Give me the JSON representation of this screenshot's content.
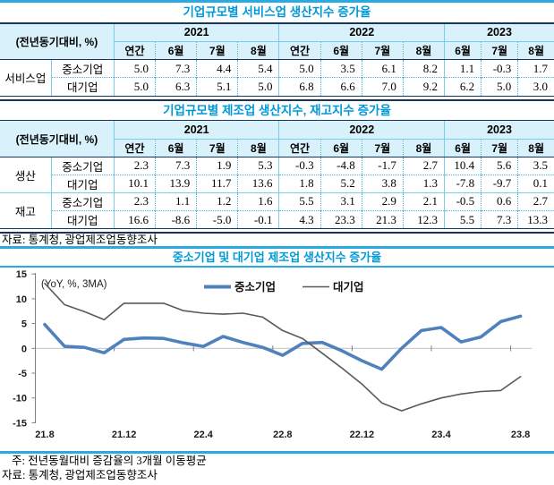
{
  "colors": {
    "title_blue": "#0099D8",
    "header_bg": "#D9F1FB",
    "rule_navy": "#16365C",
    "rule_cyan": "#29ABE2",
    "group_line": "#7CCDEA",
    "dot_line": "#49B8DF",
    "zero_grid": "#C8C8C8",
    "axis_gray": "#808080",
    "sme_blue": "#4F81BD",
    "large_gray": "#595959"
  },
  "table1": {
    "title": "기업규모별 서비스업 생산지수 증가율",
    "unit_label": "(전년동기대비, %)",
    "year_groups": [
      {
        "label": "2021",
        "months": [
          "연간",
          "6월",
          "7월",
          "8월"
        ]
      },
      {
        "label": "2022",
        "months": [
          "연간",
          "6월",
          "7월",
          "8월"
        ]
      },
      {
        "label": "2023",
        "months": [
          "6월",
          "7월",
          "8월"
        ]
      }
    ],
    "rows": [
      {
        "group": "서비스업",
        "rowspan": 2,
        "label": "중소기업",
        "values": [
          "5.0",
          "7.3",
          "4.4",
          "5.4",
          "5.0",
          "3.5",
          "6.1",
          "8.2",
          "1.1",
          "-0.3",
          "1.7"
        ]
      },
      {
        "group": "",
        "label": "대기업",
        "values": [
          "5.0",
          "6.3",
          "5.1",
          "5.0",
          "6.8",
          "6.6",
          "7.0",
          "9.2",
          "6.2",
          "5.0",
          "3.0"
        ]
      }
    ]
  },
  "table2": {
    "title": "기업규모별 제조업 생산지수, 재고지수 증가율",
    "unit_label": "(전년동기대비, %)",
    "year_groups": [
      {
        "label": "2021",
        "months": [
          "연간",
          "6월",
          "7월",
          "8월"
        ]
      },
      {
        "label": "2022",
        "months": [
          "연간",
          "6월",
          "7월",
          "8월"
        ]
      },
      {
        "label": "2023",
        "months": [
          "6월",
          "7월",
          "8월"
        ]
      }
    ],
    "rows": [
      {
        "group": "생산",
        "rowspan": 2,
        "label": "중소기업",
        "values": [
          "2.3",
          "7.3",
          "1.9",
          "5.3",
          "-0.3",
          "-4.8",
          "-1.7",
          "2.7",
          "10.4",
          "5.6",
          "3.5"
        ]
      },
      {
        "group": "",
        "label": "대기업",
        "values": [
          "10.1",
          "13.9",
          "11.7",
          "13.6",
          "1.8",
          "5.2",
          "3.8",
          "1.3",
          "-7.8",
          "-9.7",
          "0.1"
        ]
      },
      {
        "group": "재고",
        "rowspan": 2,
        "label": "중소기업",
        "values": [
          "2.3",
          "1.1",
          "1.2",
          "1.6",
          "5.5",
          "3.1",
          "2.9",
          "2.1",
          "-0.5",
          "0.6",
          "2.7"
        ]
      },
      {
        "group": "",
        "label": "대기업",
        "values": [
          "16.6",
          "-8.6",
          "-5.0",
          "-0.1",
          "4.3",
          "23.3",
          "21.3",
          "12.3",
          "5.5",
          "7.3",
          "13.3"
        ]
      }
    ],
    "source": "자료: 통계청, 광업제조업동향조사"
  },
  "chart_data": {
    "type": "line",
    "title": "중소기업 및 대기업 제조업 생산지수 증가율",
    "unit_note": "(YoY, %, 3MA)",
    "legend_position": "top-center",
    "grid": "zero-line-only",
    "ylim": [
      -15,
      15
    ],
    "yticks": [
      15,
      10,
      5,
      0,
      -5,
      -10,
      -15
    ],
    "x": [
      "21.8",
      "21.9",
      "21.10",
      "21.11",
      "21.12",
      "22.1",
      "22.2",
      "22.3",
      "22.4",
      "22.5",
      "22.6",
      "22.7",
      "22.8",
      "22.9",
      "22.10",
      "22.11",
      "22.12",
      "23.1",
      "23.2",
      "23.3",
      "23.4",
      "23.5",
      "23.6",
      "23.7",
      "23.8"
    ],
    "x_tick_labels": [
      "21.8",
      "21.12",
      "22.4",
      "22.8",
      "22.12",
      "23.4",
      "23.8"
    ],
    "series": [
      {
        "name": "중소기업",
        "color": "#4F81BD",
        "stroke_width": 3.6,
        "values": [
          4.8,
          0.4,
          0.2,
          -0.9,
          1.8,
          2.1,
          2.0,
          1.1,
          0.4,
          2.4,
          1.2,
          0.2,
          -1.4,
          1.0,
          1.2,
          -0.5,
          -2.5,
          -4.2,
          0.0,
          3.6,
          4.2,
          1.3,
          2.3,
          5.4,
          6.5
        ]
      },
      {
        "name": "대기업",
        "color": "#595959",
        "stroke_width": 1.6,
        "values": [
          13.1,
          8.8,
          7.4,
          5.8,
          9.1,
          9.1,
          9.1,
          7.6,
          7.1,
          6.9,
          7.1,
          6.3,
          3.6,
          2.0,
          -1.0,
          -4.0,
          -7.2,
          -11.0,
          -12.6,
          -11.2,
          -10.0,
          -9.2,
          -8.7,
          -8.5,
          -5.7
        ]
      }
    ]
  },
  "notes": {
    "note": "주: 전년동월대비 증감율의 3개월 이동평균",
    "source": "자료: 통계청, 광업제조업동향조사"
  }
}
